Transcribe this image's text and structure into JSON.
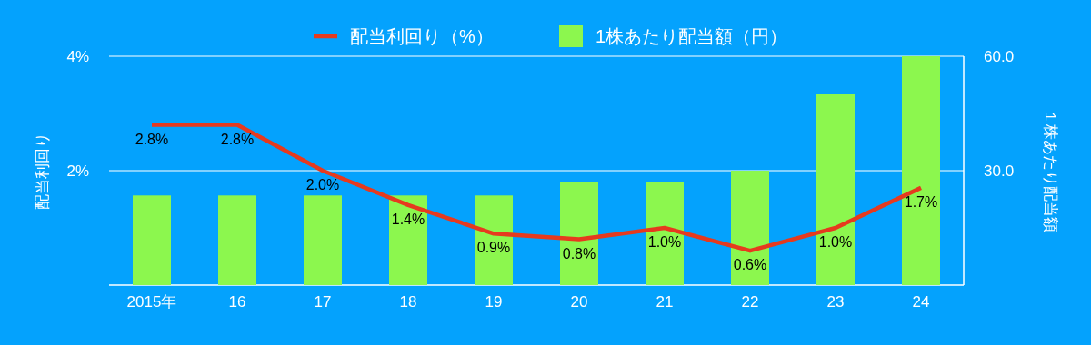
{
  "chart_data": {
    "type": "bar",
    "categories": [
      "2015年",
      "16",
      "17",
      "18",
      "19",
      "20",
      "21",
      "22",
      "23",
      "24"
    ],
    "ylabel": "配当利回り",
    "y2label": "１株あたり配当額",
    "ylim": [
      0,
      4
    ],
    "yticks": [
      {
        "value": 2,
        "label": "2%"
      },
      {
        "value": 4,
        "label": "4%"
      }
    ],
    "y2lim": [
      0,
      60
    ],
    "y2ticks": [
      {
        "value": 30,
        "label": "30.0"
      },
      {
        "value": 60,
        "label": "60.0"
      }
    ],
    "grid": "y",
    "legend": "top",
    "series": [
      {
        "name": "配当利回り（%）",
        "type": "line",
        "axis": "y",
        "color": "#e63a1e",
        "values": [
          2.8,
          2.8,
          2.0,
          1.4,
          0.9,
          0.8,
          1.0,
          0.6,
          1.0,
          1.7
        ],
        "value_labels": [
          "2.8%",
          "2.8%",
          "2.0%",
          "1.4%",
          "0.9%",
          "0.8%",
          "1.0%",
          "0.6%",
          "1.0%",
          "1.7%"
        ]
      },
      {
        "name": "1株あたり配当額（円）",
        "axis": "y2",
        "color": "#8cf74e",
        "values": [
          23.5,
          23.5,
          23.5,
          23.5,
          23.5,
          27,
          27,
          30,
          50,
          60
        ]
      }
    ]
  }
}
